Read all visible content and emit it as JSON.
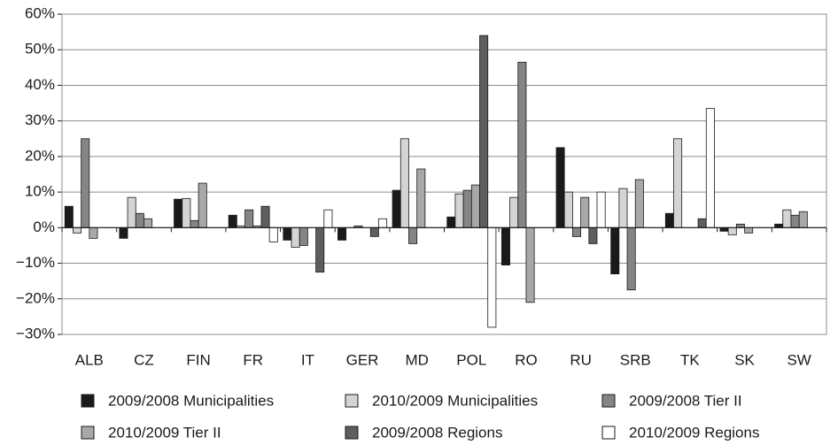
{
  "chart_data": {
    "type": "bar",
    "categories": [
      "ALB",
      "CZ",
      "FIN",
      "FR",
      "IT",
      "GER",
      "MD",
      "POL",
      "RO",
      "RU",
      "SRB",
      "TK",
      "SK",
      "SW"
    ],
    "series": [
      {
        "name": "2009/2008 Municipalities",
        "color": "#1a1a1a",
        "values": [
          6,
          -3,
          8,
          3.5,
          -3.5,
          -3.5,
          10.5,
          3,
          -10.5,
          22.5,
          -13,
          4,
          -1,
          1
        ]
      },
      {
        "name": "2010/2009 Municipalities",
        "color": "#d4d4d4",
        "values": [
          -1.5,
          8.5,
          8.2,
          0.5,
          -5.5,
          null,
          25,
          9.5,
          8.5,
          10,
          11,
          25,
          -2,
          5
        ]
      },
      {
        "name": "2009/2008 Tier II",
        "color": "#858585",
        "values": [
          25,
          4,
          2,
          5,
          -5,
          0.5,
          -4.5,
          10.5,
          46.5,
          -2.5,
          -17.5,
          null,
          1,
          3.5
        ]
      },
      {
        "name": "2010/2009 Tier II",
        "color": "#a8a8a8",
        "values": [
          -3,
          2.5,
          12.5,
          0.5,
          null,
          null,
          16.5,
          12,
          -21,
          8.5,
          13.5,
          null,
          -1.5,
          4.5
        ]
      },
      {
        "name": "2009/2008 Regions",
        "color": "#5e5e5e",
        "values": [
          null,
          null,
          null,
          6,
          -12.5,
          -2.5,
          null,
          54,
          null,
          -4.5,
          null,
          2.5,
          null,
          null
        ]
      },
      {
        "name": "2010/2009 Regions",
        "color": "#ffffff",
        "values": [
          null,
          null,
          null,
          -4,
          5,
          2.5,
          null,
          -28,
          null,
          10,
          null,
          33.5,
          null,
          null
        ]
      }
    ],
    "ylim": [
      -30,
      60
    ],
    "yticks": [
      {
        "value": -30,
        "label": "−30%"
      },
      {
        "value": -20,
        "label": "−20%"
      },
      {
        "value": -10,
        "label": "−10%"
      },
      {
        "value": 0,
        "label": "0%"
      },
      {
        "value": 10,
        "label": "10%"
      },
      {
        "value": 20,
        "label": "20%"
      },
      {
        "value": 30,
        "label": "30%"
      },
      {
        "value": 40,
        "label": "40%"
      },
      {
        "value": 50,
        "label": "50%"
      },
      {
        "value": 60,
        "label": "60%"
      }
    ],
    "grid": true
  }
}
